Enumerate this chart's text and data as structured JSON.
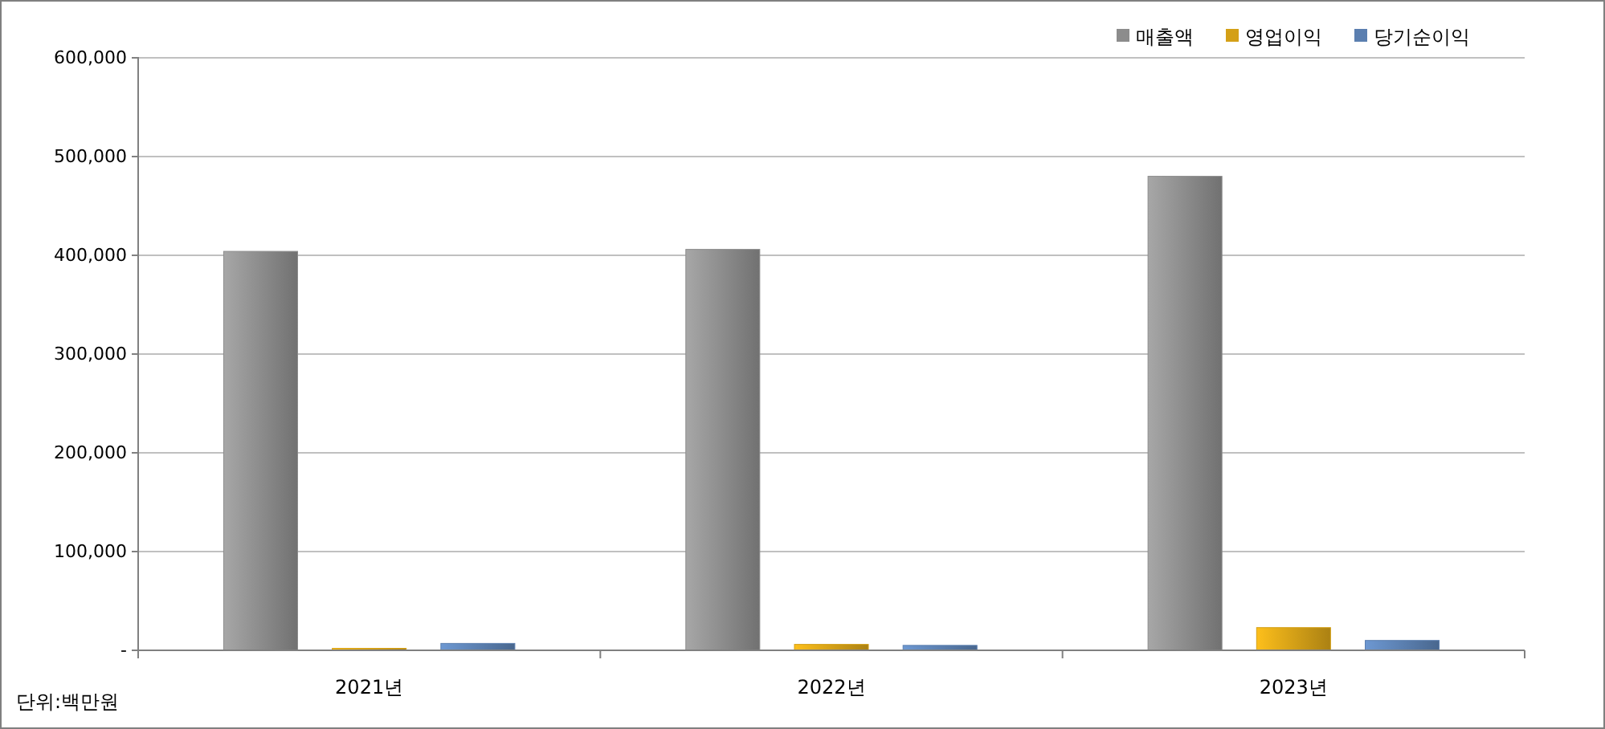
{
  "chart_data": {
    "type": "bar",
    "categories": [
      "2021년",
      "2022년",
      "2023년"
    ],
    "series": [
      {
        "name": "매출액",
        "color": "#8c8c8c",
        "values": [
          404000,
          406000,
          480000
        ]
      },
      {
        "name": "영업이익",
        "color": "#d4a017",
        "values": [
          2000,
          6000,
          23000
        ]
      },
      {
        "name": "당기순이익",
        "color": "#5b7fb0",
        "values": [
          7000,
          5000,
          10000
        ]
      }
    ],
    "ylim": [
      0,
      600000
    ],
    "yticks": [
      {
        "value": 0,
        "label": "-"
      },
      {
        "value": 100000,
        "label": "100,000"
      },
      {
        "value": 200000,
        "label": "200,000"
      },
      {
        "value": 300000,
        "label": "300,000"
      },
      {
        "value": 400000,
        "label": "400,000"
      },
      {
        "value": 500000,
        "label": "500,000"
      },
      {
        "value": 600000,
        "label": "600,000"
      }
    ],
    "grid": "y",
    "legend": "top right",
    "annotations": [
      "단위:백만원"
    ]
  }
}
